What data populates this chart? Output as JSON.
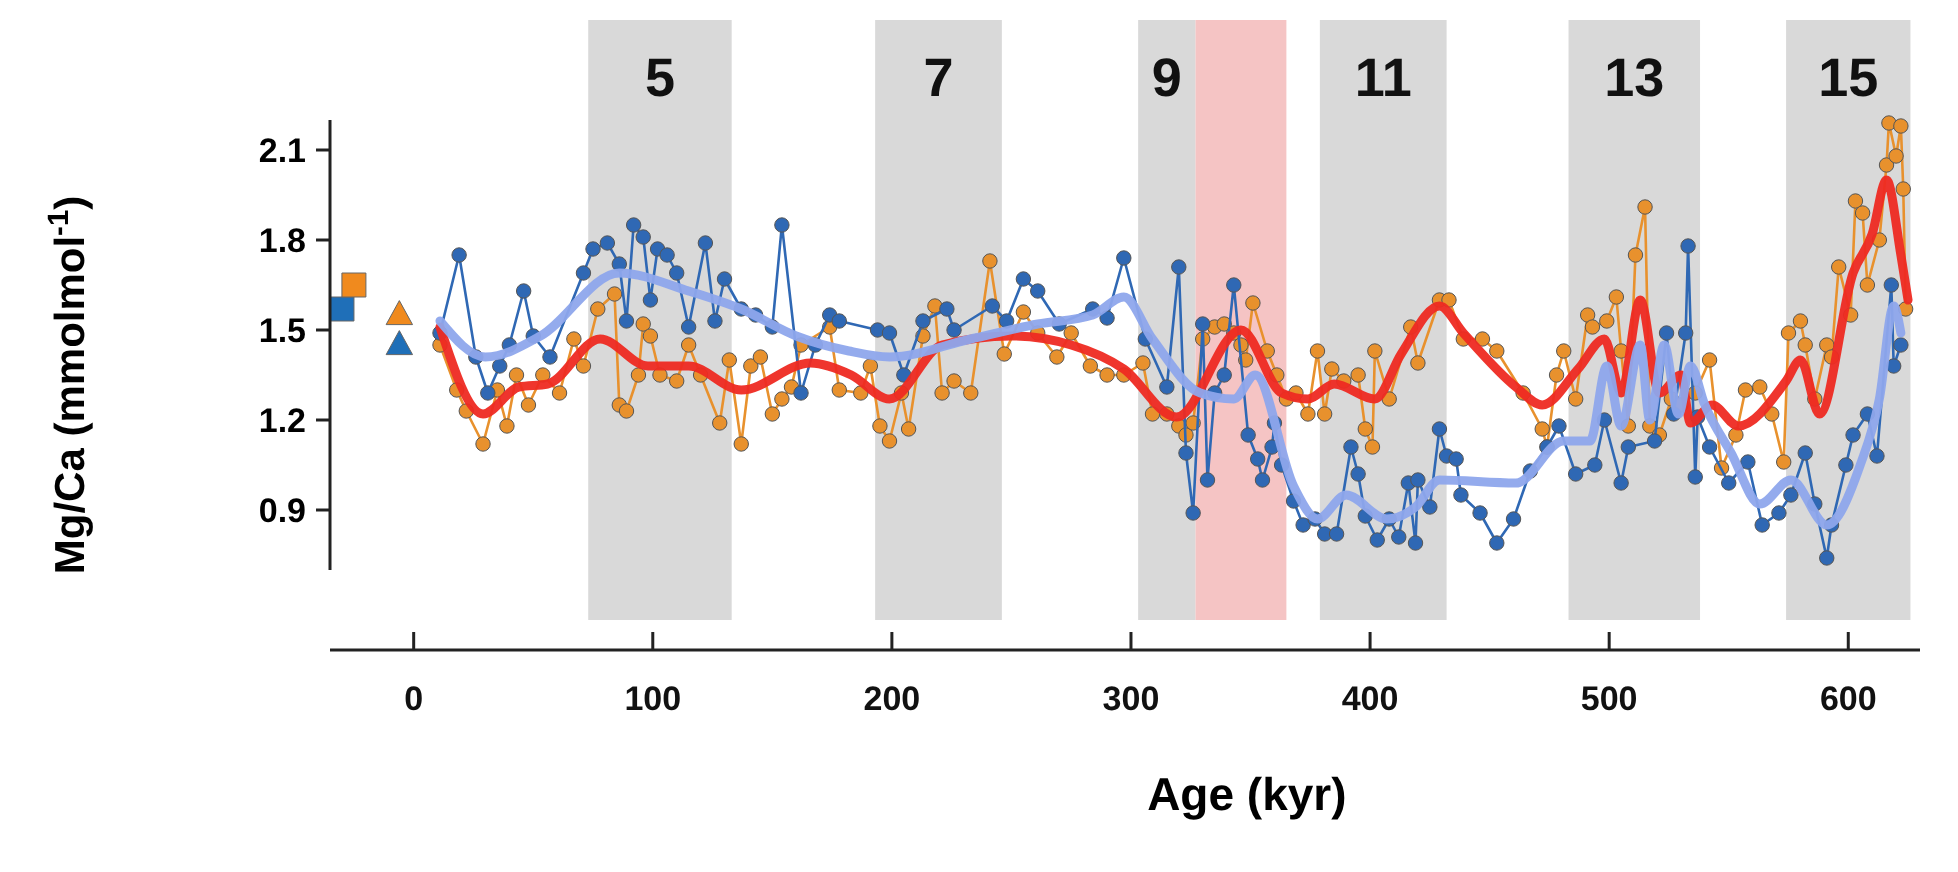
{
  "chart_data": {
    "type": "line",
    "xlabel": "Age (kyr)",
    "ylabel": "Mg/Ca (mmolmol$^{-1}$)",
    "xlim": [
      -35,
      630
    ],
    "ylim": [
      0.7,
      2.2
    ],
    "xticks": [
      0,
      100,
      200,
      300,
      400,
      500,
      600
    ],
    "yticks": [
      0.9,
      1.2,
      1.5,
      1.8,
      2.1
    ],
    "grid": false,
    "bands": [
      {
        "axis": "x",
        "from": 73,
        "to": 133,
        "label": "5",
        "color": "#d9d9d9"
      },
      {
        "axis": "x",
        "from": 193,
        "to": 246,
        "label": "7",
        "color": "#d9d9d9"
      },
      {
        "axis": "x",
        "from": 303,
        "to": 327,
        "label": "9",
        "color": "#d9d9d9"
      },
      {
        "axis": "x",
        "from": 327,
        "to": 365,
        "color": "#f5c4c4"
      },
      {
        "axis": "x",
        "from": 379,
        "to": 432,
        "label": "11",
        "color": "#d9d9d9"
      },
      {
        "axis": "x",
        "from": 483,
        "to": 538,
        "label": "13",
        "color": "#d9d9d9"
      },
      {
        "axis": "x",
        "from": 574,
        "to": 626,
        "label": "15",
        "color": "#d9d9d9"
      }
    ],
    "series": [
      {
        "marker": "circle",
        "color": "#e8912d",
        "x": [
          11,
          18,
          22,
          29,
          35,
          39,
          43,
          48,
          54,
          61,
          67,
          71,
          77,
          84,
          86,
          89,
          94,
          96,
          99,
          103,
          110,
          115,
          120,
          128,
          132,
          137,
          141,
          145,
          150,
          154,
          158,
          162,
          174,
          178,
          187,
          191,
          195,
          199,
          204,
          207,
          213,
          218,
          221,
          226,
          233,
          241,
          247,
          255,
          261,
          269,
          275,
          283,
          290,
          297,
          305,
          309,
          315,
          320,
          323,
          326,
          330,
          335,
          339,
          343,
          346,
          348,
          351,
          357,
          361,
          365,
          369,
          374,
          378,
          381,
          384,
          389,
          395,
          398,
          401,
          402,
          408,
          417,
          420,
          429,
          433,
          439,
          447,
          453,
          464,
          472,
          474,
          478,
          481,
          486,
          491,
          493,
          499,
          503,
          505,
          508,
          511,
          515,
          517,
          521,
          526,
          530,
          536,
          542,
          547,
          553,
          557,
          563,
          568,
          573,
          575,
          580,
          582,
          586,
          591,
          593,
          596,
          601,
          603,
          606,
          608,
          613,
          616,
          617,
          620,
          622,
          623,
          624
        ],
        "values": [
          1.45,
          1.3,
          1.23,
          1.12,
          1.3,
          1.18,
          1.35,
          1.25,
          1.35,
          1.29,
          1.47,
          1.38,
          1.57,
          1.62,
          1.25,
          1.23,
          1.35,
          1.52,
          1.48,
          1.35,
          1.33,
          1.45,
          1.35,
          1.19,
          1.4,
          1.12,
          1.38,
          1.41,
          1.22,
          1.27,
          1.31,
          1.45,
          1.51,
          1.3,
          1.29,
          1.38,
          1.18,
          1.13,
          1.29,
          1.17,
          1.48,
          1.58,
          1.29,
          1.33,
          1.29,
          1.73,
          1.42,
          1.56,
          1.49,
          1.41,
          1.49,
          1.38,
          1.35,
          1.35,
          1.39,
          1.22,
          1.22,
          1.18,
          1.15,
          1.19,
          1.47,
          1.51,
          1.52,
          1.49,
          1.45,
          1.4,
          1.59,
          1.43,
          1.35,
          1.27,
          1.29,
          1.22,
          1.43,
          1.22,
          1.37,
          1.33,
          1.35,
          1.17,
          1.11,
          1.43,
          1.27,
          1.51,
          1.39,
          1.6,
          1.6,
          1.47,
          1.47,
          1.43,
          1.29,
          1.17,
          1.11,
          1.35,
          1.43,
          1.27,
          1.55,
          1.51,
          1.53,
          1.61,
          1.43,
          1.18,
          1.75,
          1.91,
          1.18,
          1.15,
          1.27,
          1.25,
          1.29,
          1.4,
          1.04,
          1.15,
          1.3,
          1.31,
          1.22,
          1.06,
          1.49,
          1.53,
          1.45,
          1.27,
          1.45,
          1.41,
          1.71,
          1.55,
          1.93,
          1.89,
          1.65,
          1.8,
          2.05,
          2.19,
          2.08,
          2.18,
          1.97,
          1.57
        ]
      },
      {
        "marker": "circle",
        "color": "#2f68b4",
        "x": [
          11,
          19,
          26,
          31,
          36,
          40,
          46,
          50,
          57,
          71,
          75,
          81,
          86,
          89,
          92,
          96,
          99,
          102,
          106,
          110,
          115,
          122,
          126,
          130,
          137,
          143,
          150,
          154,
          162,
          168,
          174,
          178,
          194,
          199,
          205,
          213,
          223,
          226,
          242,
          248,
          255,
          261,
          270,
          284,
          290,
          297,
          306,
          315,
          320,
          323,
          326,
          330,
          332,
          335,
          339,
          343,
          349,
          353,
          355,
          359,
          360,
          363,
          368,
          372,
          377,
          381,
          386,
          392,
          395,
          398,
          403,
          408,
          412,
          416,
          419,
          420,
          425,
          429,
          432,
          436,
          438,
          446,
          453,
          460,
          467,
          474,
          479,
          486,
          494,
          498,
          505,
          508,
          519,
          524,
          527,
          532,
          533,
          536,
          537,
          542,
          550,
          558,
          564,
          571,
          576,
          582,
          586,
          591,
          593,
          599,
          602,
          608,
          612,
          618,
          619,
          622
        ],
        "values": [
          1.49,
          1.75,
          1.41,
          1.29,
          1.38,
          1.45,
          1.63,
          1.48,
          1.41,
          1.69,
          1.77,
          1.79,
          1.72,
          1.53,
          1.85,
          1.81,
          1.6,
          1.77,
          1.75,
          1.69,
          1.51,
          1.79,
          1.53,
          1.67,
          1.57,
          1.55,
          1.51,
          1.85,
          1.29,
          1.45,
          1.55,
          1.53,
          1.5,
          1.49,
          1.35,
          1.53,
          1.57,
          1.5,
          1.58,
          1.53,
          1.67,
          1.63,
          1.52,
          1.57,
          1.54,
          1.74,
          1.47,
          1.31,
          1.71,
          1.09,
          0.89,
          1.52,
          1.0,
          1.29,
          1.35,
          1.65,
          1.15,
          1.07,
          1.0,
          1.11,
          1.19,
          1.05,
          0.93,
          0.85,
          0.87,
          0.82,
          0.82,
          1.11,
          1.02,
          0.88,
          0.8,
          0.87,
          0.81,
          0.99,
          0.79,
          1.0,
          0.91,
          1.17,
          1.08,
          1.07,
          0.95,
          0.89,
          0.79,
          0.87,
          1.03,
          1.11,
          1.18,
          1.02,
          1.05,
          1.2,
          0.99,
          1.11,
          1.13,
          1.49,
          1.22,
          1.49,
          1.78,
          1.01,
          1.21,
          1.11,
          0.99,
          1.06,
          0.85,
          0.89,
          0.95,
          1.09,
          0.92,
          0.74,
          0.85,
          1.05,
          1.15,
          1.22,
          1.08,
          1.65,
          1.38,
          1.45
        ]
      },
      {
        "marker": "none",
        "color": "#ee2a22",
        "x": [
          11,
          29,
          44,
          56,
          78,
          98,
          115,
          137,
          166,
          183,
          199,
          221,
          250,
          275,
          297,
          319,
          346,
          363,
          374,
          385,
          402,
          413,
          429,
          439,
          461,
          472,
          487,
          498,
          505,
          513,
          521,
          530,
          534,
          543,
          554,
          574,
          580,
          588,
          602,
          610,
          616,
          622,
          625
        ],
        "values": [
          1.51,
          1.22,
          1.31,
          1.32,
          1.47,
          1.38,
          1.38,
          1.3,
          1.39,
          1.35,
          1.27,
          1.45,
          1.48,
          1.45,
          1.37,
          1.21,
          1.5,
          1.29,
          1.27,
          1.32,
          1.27,
          1.42,
          1.58,
          1.49,
          1.31,
          1.25,
          1.37,
          1.47,
          1.29,
          1.6,
          1.29,
          1.35,
          1.19,
          1.25,
          1.18,
          1.33,
          1.4,
          1.22,
          1.69,
          1.82,
          2.0,
          1.75,
          1.6
        ]
      },
      {
        "marker": "none",
        "color": "#8ea6ec",
        "x": [
          11,
          30,
          53,
          86,
          115,
          137,
          160,
          182,
          199,
          233,
          261,
          284,
          297,
          309,
          329,
          343,
          352,
          368,
          378,
          390,
          407,
          419,
          429,
          461,
          481,
          492,
          499,
          505,
          513,
          517,
          523,
          529,
          534,
          540,
          551,
          563,
          576,
          591,
          605,
          613,
          619,
          622
        ],
        "values": [
          1.53,
          1.41,
          1.48,
          1.69,
          1.63,
          1.57,
          1.48,
          1.43,
          1.41,
          1.47,
          1.52,
          1.55,
          1.61,
          1.47,
          1.29,
          1.27,
          1.35,
          0.98,
          0.87,
          0.95,
          0.87,
          0.91,
          1.0,
          0.99,
          1.13,
          1.13,
          1.38,
          1.18,
          1.45,
          1.2,
          1.45,
          1.22,
          1.38,
          1.25,
          1.09,
          0.92,
          1.0,
          0.85,
          1.05,
          1.27,
          1.58,
          1.49
        ]
      },
      {
        "type": "scatter",
        "marker": "square",
        "color": "#1f6fb8",
        "x": [
          -30
        ],
        "values": [
          1.57
        ]
      },
      {
        "type": "scatter",
        "marker": "square",
        "color": "#f08a1e",
        "x": [
          -25
        ],
        "values": [
          1.65
        ]
      },
      {
        "type": "scatter",
        "marker": "triangle",
        "color": "#f08a1e",
        "x": [
          -6
        ],
        "values": [
          1.55
        ]
      },
      {
        "type": "scatter",
        "marker": "triangle",
        "color": "#1f6fb8",
        "x": [
          -6
        ],
        "values": [
          1.45
        ]
      }
    ]
  }
}
